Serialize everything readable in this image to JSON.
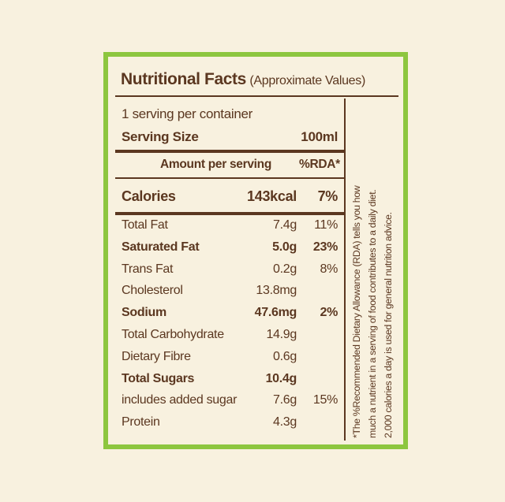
{
  "title": {
    "main": "Nutritional Facts",
    "sub": "(Approximate Values)"
  },
  "servings_per_container": "1 serving per container",
  "serving_size": {
    "label": "Serving Size",
    "value": "100ml"
  },
  "header": {
    "amount": "Amount per serving",
    "rda": "%RDA*"
  },
  "calories": {
    "label": "Calories",
    "value": "143kcal",
    "rda": "7%"
  },
  "nutrients": [
    {
      "label": "Total Fat",
      "value": "7.4g",
      "rda": "11%"
    },
    {
      "label": "Saturated Fat",
      "value": "5.0g",
      "rda": "23%"
    },
    {
      "label": "Trans Fat",
      "value": "0.2g",
      "rda": "8%"
    },
    {
      "label": "Cholesterol",
      "value": "13.8mg",
      "rda": ""
    },
    {
      "label": "Sodium",
      "value": "47.6mg",
      "rda": "2%"
    },
    {
      "label": "Total Carbohydrate",
      "value": "14.9g",
      "rda": ""
    },
    {
      "label": "Dietary Fibre",
      "value": "0.6g",
      "rda": ""
    },
    {
      "label": "Total Sugars",
      "value": "10.4g",
      "rda": ""
    },
    {
      "label": "includes added sugar",
      "value": "7.6g",
      "rda": "15%"
    },
    {
      "label": "Protein",
      "value": "4.3g",
      "rda": ""
    }
  ],
  "footnote": [
    "*The %Recommended Dietary Allowance (RDA) tells you how",
    "much a nutrient in a serving of food contributes to a daily diet.",
    "2,000 calories a day is used for general nutrition advice."
  ],
  "colors": {
    "border": "#8dc63f",
    "text": "#5b3720",
    "background": "#f8f1df"
  }
}
